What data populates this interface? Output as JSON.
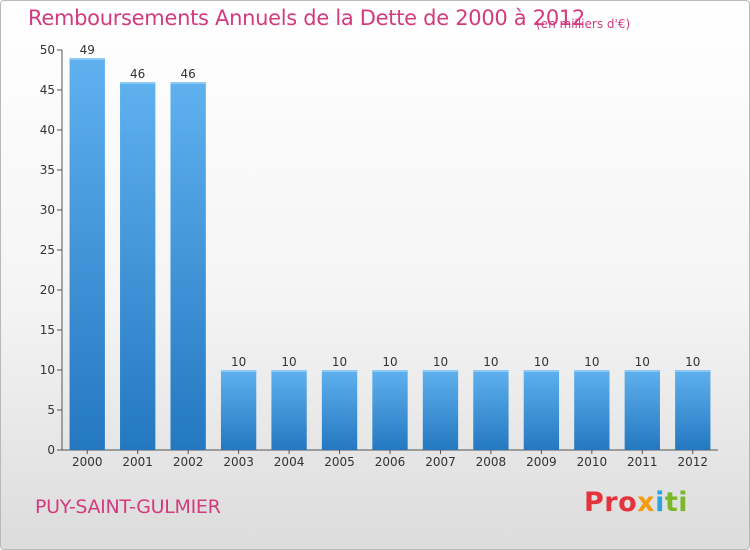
{
  "chart_data": {
    "type": "bar",
    "title": "Remboursements Annuels de la Dette de 2000 à 2012",
    "unit_note": "(en milliers d'€)",
    "xlabel": "",
    "ylabel": "",
    "categories": [
      "2000",
      "2001",
      "2002",
      "2003",
      "2004",
      "2005",
      "2006",
      "2007",
      "2008",
      "2009",
      "2010",
      "2011",
      "2012"
    ],
    "values": [
      49,
      46,
      46,
      10,
      10,
      10,
      10,
      10,
      10,
      10,
      10,
      10,
      10
    ],
    "ylim": [
      0,
      50
    ],
    "yticks": [
      0,
      5,
      10,
      15,
      20,
      25,
      30,
      35,
      40,
      45,
      50
    ],
    "grid": false,
    "bar_color": "#3d95dc"
  },
  "location": "PUY-SAINT-GULMIER",
  "logo": {
    "letters": [
      "Pro",
      "x",
      "i",
      "ti"
    ],
    "colors": [
      "#e2343a",
      "#f39c12",
      "#27a5dc",
      "#7ab829"
    ]
  }
}
